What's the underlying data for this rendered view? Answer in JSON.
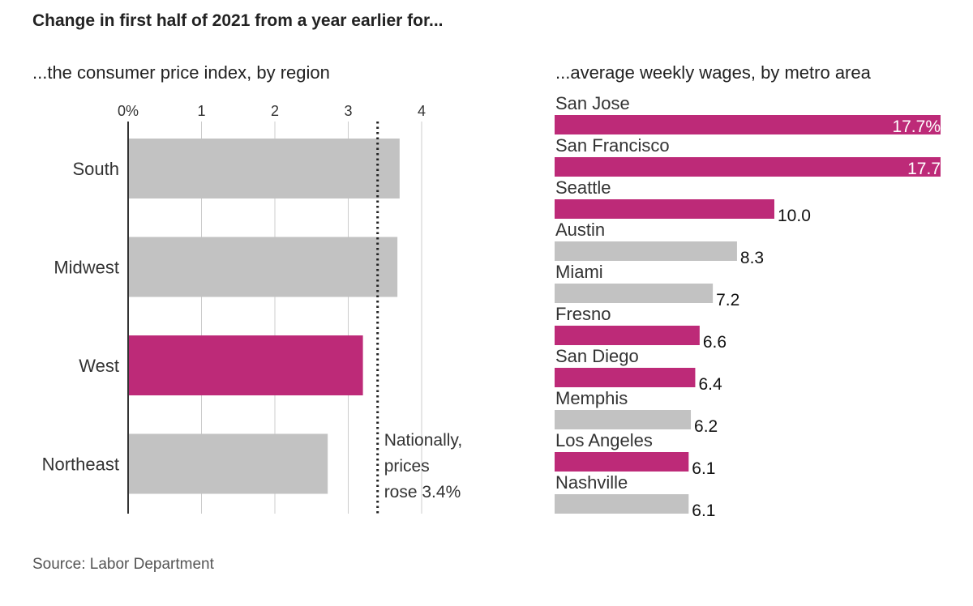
{
  "title": "Change in first half of 2021 from a year earlier for...",
  "source": "Source: Labor Department",
  "colors": {
    "highlight": "#bd2a78",
    "base": "#c2c2c2",
    "axis": "#333333",
    "grid": "#cccccc"
  },
  "chart_data": [
    {
      "type": "bar",
      "orientation": "horizontal",
      "title": "...the consumer price index, by region",
      "xlim": [
        0,
        4.5
      ],
      "ticks": [
        {
          "value": 0,
          "label": "0%"
        },
        {
          "value": 1,
          "label": "1"
        },
        {
          "value": 2,
          "label": "2"
        },
        {
          "value": 3,
          "label": "3"
        },
        {
          "value": 4,
          "label": "4"
        }
      ],
      "grid": true,
      "categories": [
        "South",
        "Midwest",
        "West",
        "Northeast"
      ],
      "values": [
        3.7,
        3.67,
        3.2,
        2.72
      ],
      "highlight": [
        false,
        false,
        true,
        false
      ],
      "reference_line": {
        "value": 3.4,
        "annotation": [
          "Nationally,",
          "prices",
          "rose 3.4%"
        ]
      }
    },
    {
      "type": "bar",
      "orientation": "horizontal",
      "title": "...average weekly wages, by metro area",
      "categories": [
        "San Jose",
        "San Francisco",
        "Seattle",
        "Austin",
        "Miami",
        "Fresno",
        "San Diego",
        "Memphis",
        "Los Angeles",
        "Nashville"
      ],
      "values": [
        17.7,
        17.7,
        10.0,
        8.3,
        7.2,
        6.6,
        6.4,
        6.2,
        6.1,
        6.1
      ],
      "value_labels": [
        "17.7%",
        "17.7",
        "10.0",
        "8.3",
        "7.2",
        "6.6",
        "6.4",
        "6.2",
        "6.1",
        "6.1"
      ],
      "highlight": [
        true,
        true,
        true,
        false,
        false,
        true,
        true,
        false,
        true,
        false
      ]
    }
  ]
}
